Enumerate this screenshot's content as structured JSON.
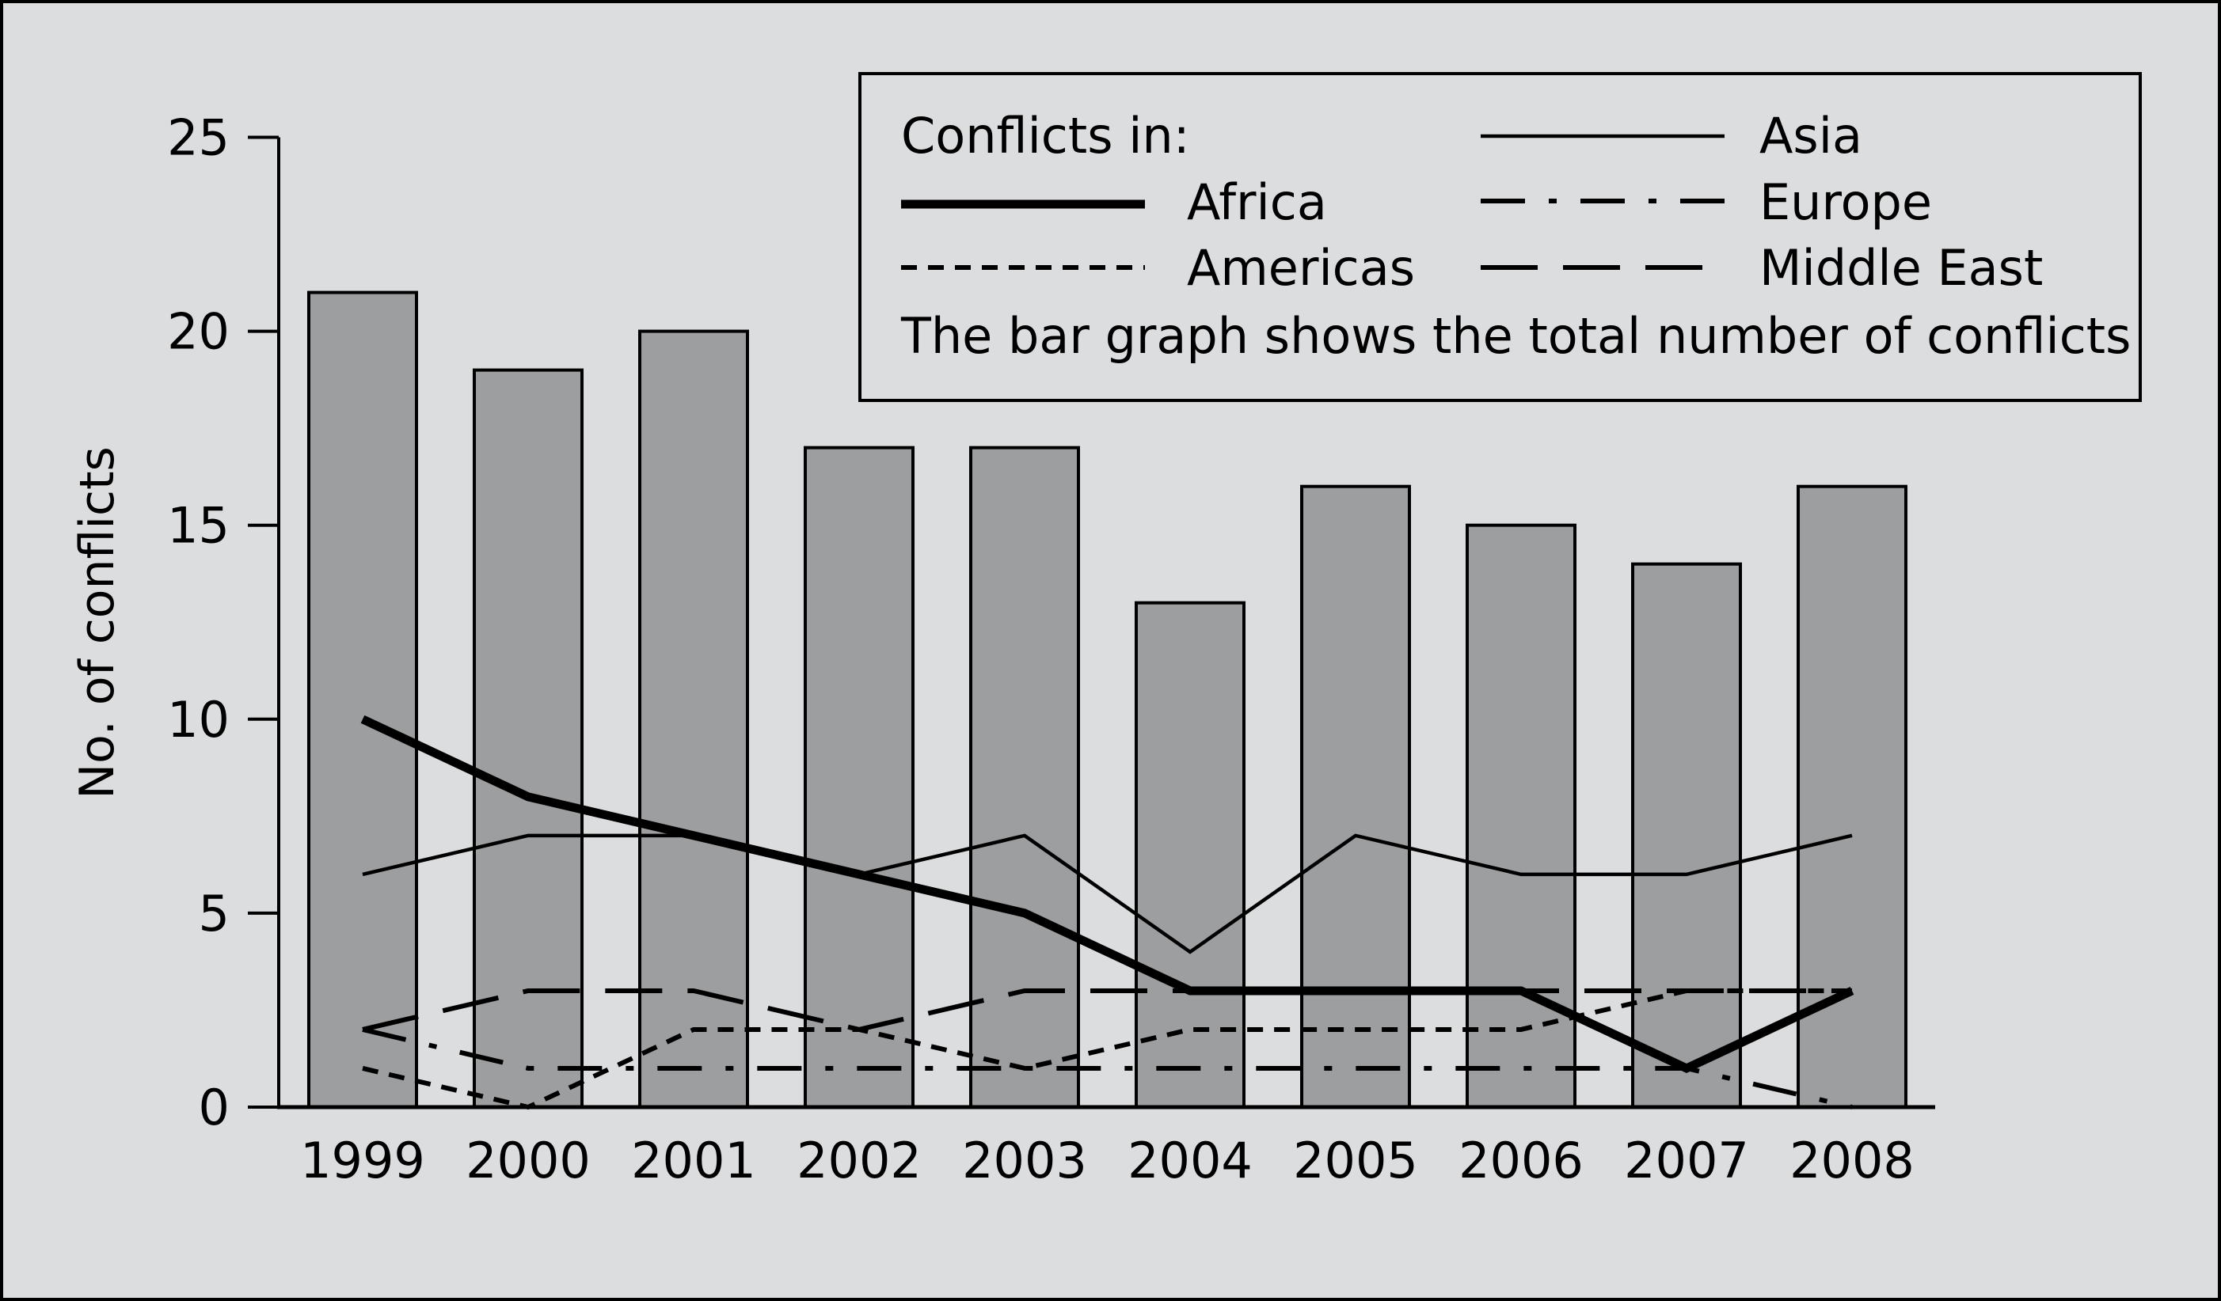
{
  "chart_data": {
    "type": "bar",
    "categories": [
      "1999",
      "2000",
      "2001",
      "2002",
      "2003",
      "2004",
      "2005",
      "2006",
      "2007",
      "2008"
    ],
    "values": [
      21,
      19,
      20,
      17,
      17,
      13,
      16,
      15,
      14,
      16
    ],
    "bar_color": "#9d9ea0",
    "background": "#dcdddf",
    "ylabel": "No. of conflicts",
    "xlabel": "",
    "ylim": [
      0,
      25
    ],
    "yticks": [
      "0",
      "5",
      "10",
      "15",
      "20",
      "25"
    ],
    "grid": false,
    "legend_title": "Conflicts in:",
    "legend_note": "The bar graph shows the total number of conflicts",
    "legend_position": "top-right",
    "series": [
      {
        "name": "Africa",
        "style": "thick-solid",
        "values": [
          10,
          8,
          7,
          6,
          5,
          3,
          3,
          3,
          1,
          3
        ]
      },
      {
        "name": "Americas",
        "style": "dotted",
        "values": [
          1,
          0,
          2,
          2,
          1,
          2,
          2,
          2,
          3,
          3
        ]
      },
      {
        "name": "Asia",
        "style": "solid",
        "values": [
          6,
          7,
          7,
          6,
          7,
          4,
          7,
          6,
          6,
          7
        ]
      },
      {
        "name": "Europe",
        "style": "dash-dot",
        "values": [
          2,
          1,
          1,
          1,
          1,
          1,
          1,
          1,
          1,
          0
        ]
      },
      {
        "name": "Middle East",
        "style": "long-dash",
        "values": [
          2,
          3,
          3,
          2,
          3,
          3,
          3,
          3,
          3,
          3
        ]
      }
    ]
  }
}
